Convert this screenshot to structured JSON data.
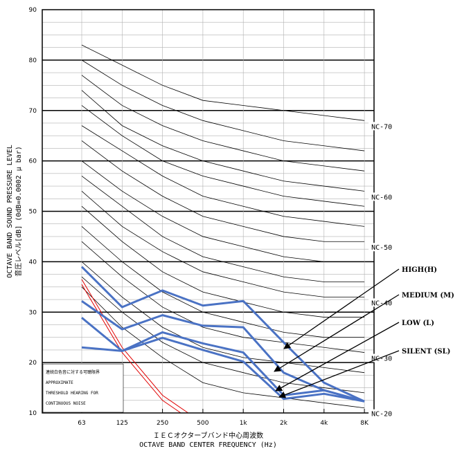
{
  "chart_data": {
    "type": "line",
    "title": "",
    "xlabel_jp": "ＩＥＣオクターブバンド中心周波数",
    "xlabel_en": "OCTAVE BAND CENTER FREQUENCY (Hz)",
    "ylabel_en": "OCTAVE BAND SOUND PRESSURE LEVEL",
    "ylabel_jp": "音圧レベル[dB] (0dB=0.0002 μ bar)",
    "ylim": [
      10,
      90
    ],
    "yticks": [
      "10",
      "20",
      "30",
      "40",
      "50",
      "60",
      "70",
      "80",
      "90"
    ],
    "categories": [
      "63",
      "125",
      "250",
      "500",
      "1k",
      "2k",
      "4k",
      "8K"
    ],
    "grid": true,
    "nc_curves": [
      {
        "name": "NC-70",
        "values": [
          83,
          79,
          75,
          72,
          71,
          70,
          69,
          68
        ]
      },
      {
        "name": "",
        "values": [
          80,
          75,
          71,
          68,
          66,
          64,
          63,
          62
        ]
      },
      {
        "name": "",
        "values": [
          77,
          71,
          67,
          64,
          62,
          60,
          59,
          58
        ]
      },
      {
        "name": "NC-60",
        "values": [
          74,
          67,
          63,
          60,
          58,
          56,
          55,
          54
        ]
      },
      {
        "name": "",
        "values": [
          71,
          65,
          60,
          57,
          55,
          53,
          52,
          51
        ]
      },
      {
        "name": "",
        "values": [
          67,
          62,
          57,
          53,
          51,
          49,
          48,
          47
        ]
      },
      {
        "name": "NC-50",
        "values": [
          64,
          58,
          53,
          49,
          47,
          45,
          44,
          44
        ]
      },
      {
        "name": "",
        "values": [
          60,
          54,
          49,
          45,
          43,
          41,
          40,
          40
        ]
      },
      {
        "name": "",
        "values": [
          57,
          51,
          45,
          41,
          39,
          37,
          36,
          36
        ]
      },
      {
        "name": "NC-40",
        "values": [
          54,
          47,
          42,
          38,
          36,
          34,
          33,
          33
        ]
      },
      {
        "name": "",
        "values": [
          51,
          44,
          38,
          34,
          32,
          30,
          29,
          29
        ]
      },
      {
        "name": "",
        "values": [
          47,
          40,
          34,
          30,
          28,
          26,
          25,
          25
        ]
      },
      {
        "name": "NC-30",
        "values": [
          44,
          37,
          31,
          27,
          25,
          24,
          23,
          22
        ]
      },
      {
        "name": "",
        "values": [
          40,
          33,
          27,
          23,
          21,
          20,
          19,
          18
        ]
      },
      {
        "name": "",
        "values": [
          37,
          30,
          24,
          20,
          18,
          16,
          15,
          14
        ]
      },
      {
        "name": "NC-20",
        "values": [
          35,
          27,
          21,
          16,
          14,
          13,
          12,
          11
        ]
      }
    ],
    "threshold_curves": [
      {
        "x": [
          1,
          2,
          3,
          4
        ],
        "values": [
          36.5,
          23,
          13.5,
          8
        ]
      },
      {
        "x": [
          1,
          2,
          3,
          4
        ],
        "values": [
          35.5,
          22,
          12.5,
          7
        ]
      }
    ],
    "threshold_note": [
      "連続白色音に対する可聴限界",
      "APPROXIMATE",
      "THRESHOLD HEARING  FOR",
      "CONTINUOUS NOISE"
    ],
    "series": [
      {
        "name": "HIGH(H)",
        "values": [
          39,
          31,
          34.3,
          31.3,
          32.2,
          24,
          16,
          12.3
        ]
      },
      {
        "name": "MEDIUM (M)",
        "values": [
          32.2,
          26.6,
          29.4,
          27.3,
          27,
          18,
          14.5,
          12.3
        ]
      },
      {
        "name": "LOW (L)",
        "values": [
          28.9,
          22.3,
          26,
          23.8,
          22,
          13.5,
          14.5,
          12.3
        ]
      },
      {
        "name": "SILENT (SL)",
        "values": [
          23,
          22.3,
          24.9,
          22.5,
          20.2,
          12.8,
          13.8,
          12.3
        ]
      }
    ],
    "series_color": "#4a72c4",
    "threshold_color": "#e00000"
  }
}
